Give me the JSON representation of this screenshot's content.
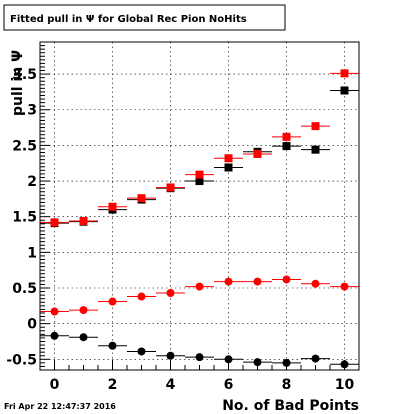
{
  "chart_data": {
    "type": "scatter",
    "title": "Fitted pull in  Ψ  for Global Rec Pion NoHits",
    "xlabel": "No. of Bad Points",
    "ylabel": "pull in  Ψ",
    "xlim": [
      -0.5,
      10.5
    ],
    "ylim": [
      -0.65,
      3.95
    ],
    "x_ticks": [
      0,
      2,
      4,
      6,
      8,
      10
    ],
    "y_ticks": [
      -0.5,
      0,
      0.5,
      1,
      1.5,
      2,
      2.5,
      3,
      3.5
    ],
    "grid": true,
    "x": [
      0,
      1,
      2,
      3,
      4,
      5,
      6,
      7,
      8,
      9,
      10
    ],
    "series": [
      {
        "marker": "square",
        "color": "#000000",
        "values": [
          1.41,
          1.43,
          1.6,
          1.74,
          1.9,
          2.0,
          2.19,
          2.41,
          2.49,
          2.44,
          3.27
        ]
      },
      {
        "marker": "square",
        "color": "#ff0000",
        "values": [
          1.42,
          1.44,
          1.64,
          1.76,
          1.91,
          2.09,
          2.32,
          2.38,
          2.62,
          2.77,
          3.51
        ]
      },
      {
        "marker": "circle",
        "color": "#ff0000",
        "values": [
          0.17,
          0.19,
          0.31,
          0.38,
          0.43,
          0.52,
          0.59,
          0.59,
          0.62,
          0.56,
          0.52
        ]
      },
      {
        "marker": "circle",
        "color": "#000000",
        "values": [
          -0.17,
          -0.19,
          -0.31,
          -0.39,
          -0.45,
          -0.47,
          -0.5,
          -0.54,
          -0.55,
          -0.49,
          -0.57
        ]
      }
    ],
    "timestamp": "Fri Apr 22 12:47:37 2016"
  }
}
